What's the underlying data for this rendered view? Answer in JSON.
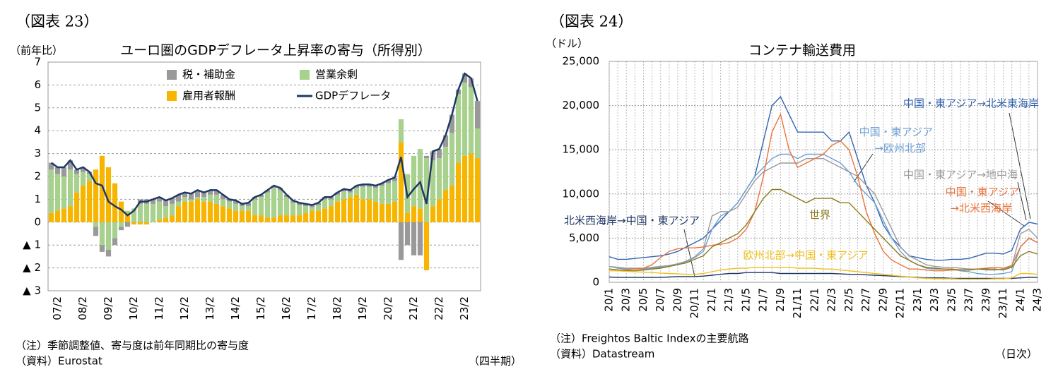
{
  "chart_data": [
    {
      "type": "bar",
      "stacked": true,
      "figure_label": "（図表 23）",
      "title": "ユーロ圏のGDPデフレータ上昇率の寄与（所得別）",
      "ylabel": "（前年比）",
      "xlabel": "（四半期）",
      "notes": [
        "（注）季節調整値、寄与度は前年同期比の寄与度",
        "（資料）Eurostat"
      ],
      "categories": [
        null,
        "07/2",
        null,
        null,
        null,
        "08/2",
        null,
        null,
        null,
        "09/2",
        null,
        null,
        null,
        "10/2",
        null,
        null,
        null,
        "11/2",
        null,
        null,
        null,
        "12/2",
        null,
        null,
        null,
        "13/2",
        null,
        null,
        null,
        "14/2",
        null,
        null,
        null,
        "15/2",
        null,
        null,
        null,
        "16/2",
        null,
        null,
        null,
        "17/2",
        null,
        null,
        null,
        "18/2",
        null,
        null,
        null,
        "19/2",
        null,
        null,
        null,
        "20/2",
        null,
        null,
        null,
        "21/2",
        null,
        null,
        null,
        "22/2",
        null,
        null,
        null,
        "23/2",
        null,
        null
      ],
      "ylim": [
        -3,
        7
      ],
      "yticks": [
        7,
        6,
        5,
        4,
        3,
        2,
        1,
        0,
        {
          "value": -1,
          "label": "▲ 1"
        },
        {
          "value": -2,
          "label": "▲ 2"
        },
        {
          "value": -3,
          "label": "▲ 3"
        }
      ],
      "grid": true,
      "series": [
        {
          "name": "雇用者報酬",
          "color": "#f7b500",
          "values": [
            0.4,
            0.5,
            0.6,
            0.7,
            1.3,
            1.6,
            1.8,
            2.3,
            2.9,
            2.4,
            1.7,
            0.9,
            0.4,
            -0.1,
            -0.1,
            -0.1,
            0,
            0.1,
            0.2,
            0.3,
            0.7,
            0.9,
            0.9,
            1.0,
            0.9,
            0.9,
            0.8,
            0.7,
            0.6,
            0.5,
            0.5,
            0.5,
            0.3,
            0.3,
            0.2,
            0.2,
            0.3,
            0.3,
            0.3,
            0.3,
            0.4,
            0.5,
            0.5,
            0.6,
            0.7,
            0.9,
            1.0,
            1.1,
            1.2,
            1.0,
            1.0,
            0.9,
            0.8,
            0.8,
            0.9,
            3.5,
            0.4,
            0.7,
            0.6,
            -2.1,
            0.7,
            1.0,
            1.4,
            1.6,
            2.6,
            2.9,
            3.0,
            2.8
          ]
        },
        {
          "name": "営業余剰",
          "color": "#a9d18e",
          "values": [
            1.9,
            1.6,
            1.4,
            1.6,
            0.8,
            0.6,
            0.3,
            -0.2,
            -1.0,
            -1.2,
            -0.7,
            -0.2,
            0.1,
            0.6,
            0.8,
            0.8,
            0.8,
            0.8,
            0.5,
            0.5,
            0.2,
            0.2,
            0.1,
            0.1,
            0.2,
            0.3,
            0.4,
            0.3,
            0.3,
            0.3,
            0.2,
            0.2,
            0.7,
            0.8,
            1.1,
            1.3,
            1.1,
            0.8,
            0.55,
            0.45,
            0.3,
            0.15,
            0.25,
            0.4,
            0.3,
            0.3,
            0.35,
            0.2,
            0.3,
            0.55,
            0.55,
            0.6,
            0.8,
            0.9,
            0.9,
            1.0,
            1.7,
            2.2,
            2.6,
            2.8,
            2.0,
            1.8,
            1.9,
            2.3,
            3.0,
            3.2,
            2.9,
            1.3
          ]
        },
        {
          "name": "税・補助金",
          "color": "#999999",
          "values": [
            0.3,
            0.3,
            0.4,
            0.4,
            0.2,
            0.2,
            0.1,
            -0.4,
            -0.3,
            -0.3,
            -0.3,
            -0.15,
            -0.2,
            0,
            0.2,
            0.2,
            0.2,
            0.2,
            0.25,
            0.25,
            0.3,
            0.2,
            0.25,
            0.3,
            0.2,
            0.2,
            0.2,
            0.2,
            0.1,
            0.15,
            0.1,
            0.15,
            0.1,
            0.1,
            0.1,
            0.1,
            0.1,
            0.1,
            0.1,
            0.1,
            0.1,
            0.1,
            0.1,
            0.1,
            0.1,
            0.1,
            0.1,
            0.1,
            0.1,
            0.1,
            0.1,
            0.1,
            0.1,
            0.15,
            0.15,
            -1.65,
            -1.0,
            -1.45,
            -1.45,
            0.1,
            0.4,
            0.4,
            0.5,
            0.8,
            0.2,
            0.4,
            0.4,
            1.2
          ]
        },
        {
          "name": "GDPデフレータ",
          "type": "line",
          "color": "#1f3864",
          "values": [
            2.6,
            2.4,
            2.4,
            2.7,
            2.3,
            2.4,
            2.2,
            1.7,
            1.6,
            0.9,
            0.7,
            0.55,
            0.3,
            0.5,
            0.9,
            0.9,
            1.0,
            1.1,
            0.95,
            1.05,
            1.2,
            1.3,
            1.25,
            1.4,
            1.3,
            1.4,
            1.4,
            1.2,
            1.0,
            0.95,
            0.8,
            0.85,
            1.1,
            1.2,
            1.4,
            1.6,
            1.5,
            1.2,
            0.95,
            0.85,
            0.8,
            0.75,
            0.85,
            1.1,
            1.1,
            1.3,
            1.45,
            1.4,
            1.6,
            1.65,
            1.65,
            1.6,
            1.7,
            1.85,
            1.95,
            2.85,
            1.1,
            1.45,
            1.75,
            0.8,
            3.1,
            3.2,
            3.8,
            4.7,
            5.8,
            6.5,
            6.3,
            5.3
          ]
        }
      ]
    },
    {
      "type": "line",
      "figure_label": "（図表 24）",
      "title": "コンテナ輸送費用",
      "ylabel": "（ドル）",
      "xlabel": "（日次）",
      "notes": [
        "（注）Freightos Baltic Indexの主要航路",
        "（資料）Datastream"
      ],
      "categories": [
        "20/1",
        null,
        "20/3",
        null,
        "20/5",
        null,
        "20/7",
        null,
        "20/9",
        null,
        "20/11",
        null,
        "21/1",
        null,
        "21/3",
        null,
        "21/5",
        null,
        "21/7",
        null,
        "21/9",
        null,
        "21/11",
        null,
        "22/1",
        null,
        "22/3",
        null,
        "22/5",
        null,
        "22/7",
        null,
        "22/9",
        null,
        "22/11",
        null,
        "23/1",
        null,
        "23/3",
        null,
        "23/5",
        null,
        "23/7",
        null,
        "23/9",
        null,
        "23/11",
        null,
        "24/1",
        null,
        "24/3"
      ],
      "ylim": [
        0,
        25000
      ],
      "yticks": [
        0,
        {
          "value": 5000,
          "label": "5,000"
        },
        {
          "value": 10000,
          "label": "10,000"
        },
        {
          "value": 15000,
          "label": "15,000"
        },
        {
          "value": 20000,
          "label": "20,000"
        },
        {
          "value": 25000,
          "label": "25,000"
        }
      ],
      "grid": true,
      "series": [
        {
          "name": "中国・東アジア→北米東海岸",
          "color": "#3465b0",
          "values": [
            2900,
            2600,
            2600,
            2700,
            2800,
            2900,
            3000,
            3200,
            3500,
            4000,
            4500,
            5000,
            6000,
            7000,
            8000,
            9000,
            10500,
            12000,
            16000,
            20000,
            21000,
            19000,
            17000,
            17000,
            17000,
            17000,
            16000,
            16000,
            17000,
            14000,
            11000,
            9000,
            6500,
            5000,
            4000,
            3000,
            2800,
            2600,
            2500,
            2500,
            2600,
            2600,
            2700,
            3000,
            3300,
            3300,
            3200,
            3600,
            6000,
            6800,
            6600
          ]
        },
        {
          "name": "中国・東アジア→欧州北部",
          "color": "#6fa0d4",
          "values": [
            1800,
            1600,
            1500,
            1500,
            1500,
            1600,
            1700,
            1800,
            2000,
            2300,
            2800,
            3500,
            6000,
            7500,
            8000,
            9000,
            10500,
            12000,
            13000,
            14000,
            14500,
            14500,
            14000,
            14500,
            14500,
            14500,
            14000,
            13500,
            12500,
            11000,
            10000,
            9000,
            7000,
            5000,
            3500,
            2500,
            2000,
            1600,
            1500,
            1500,
            1500,
            1300,
            1200,
            1000,
            900,
            900,
            1000,
            1200,
            4000,
            5000,
            4500
          ]
        },
        {
          "name": "中国・東アジア→地中海",
          "color": "#9a9a9a",
          "values": [
            1800,
            1700,
            1600,
            1600,
            1600,
            1700,
            1800,
            1900,
            2100,
            2400,
            2900,
            3800,
            7500,
            8000,
            8000,
            8500,
            10000,
            11500,
            12500,
            13000,
            13500,
            13500,
            13500,
            14000,
            14000,
            14000,
            13500,
            13000,
            12500,
            12000,
            11000,
            10000,
            8000,
            6000,
            4000,
            3000,
            2500,
            2000,
            1800,
            1700,
            1700,
            1600,
            1500,
            1500,
            1400,
            1400,
            1500,
            1800,
            5500,
            6000,
            5000
          ]
        },
        {
          "name": "中国・東アジア→北米西海岸",
          "color": "#e8743b",
          "values": [
            1500,
            1400,
            1400,
            1500,
            1600,
            2000,
            2800,
            3500,
            3800,
            3900,
            3900,
            4000,
            4200,
            4300,
            4500,
            5000,
            6000,
            8000,
            12000,
            17000,
            19000,
            15000,
            13000,
            13500,
            14000,
            14500,
            15500,
            16000,
            15000,
            12000,
            8000,
            5500,
            3500,
            2500,
            2000,
            1500,
            1500,
            1400,
            1300,
            1300,
            1400,
            1400,
            1400,
            1500,
            1600,
            1700,
            1600,
            1900,
            4000,
            5000,
            4500
          ]
        },
        {
          "name": "世界",
          "color": "#8a7a1a",
          "values": [
            1500,
            1400,
            1300,
            1300,
            1400,
            1500,
            1600,
            1800,
            2000,
            2200,
            2600,
            3000,
            4000,
            4500,
            5000,
            5500,
            6500,
            8000,
            9500,
            10500,
            10500,
            10000,
            9500,
            9000,
            9500,
            9500,
            9500,
            9000,
            9000,
            8000,
            7000,
            6000,
            5000,
            4000,
            3000,
            2500,
            2000,
            1700,
            1600,
            1500,
            1500,
            1400,
            1400,
            1500,
            1500,
            1500,
            1400,
            1700,
            3000,
            3500,
            3200
          ]
        },
        {
          "name": "北米西海岸→中国・東アジア",
          "color": "#1f3864",
          "values": [
            600,
            550,
            550,
            550,
            550,
            550,
            550,
            600,
            650,
            650,
            650,
            700,
            800,
            900,
            1000,
            1000,
            1100,
            1100,
            1100,
            1100,
            1000,
            1000,
            1000,
            1000,
            1000,
            1000,
            1000,
            950,
            900,
            900,
            850,
            800,
            750,
            700,
            650,
            600,
            550,
            500,
            500,
            500,
            450,
            450,
            450,
            450,
            450,
            450,
            450,
            450,
            500,
            550,
            550
          ]
        },
        {
          "name": "欧州北部→中国・東アジア",
          "color": "#f0c020",
          "values": [
            1300,
            1300,
            1250,
            1200,
            1150,
            1100,
            1050,
            1000,
            950,
            900,
            900,
            1000,
            1200,
            1400,
            1500,
            1600,
            1600,
            1700,
            1700,
            1700,
            1700,
            1700,
            1600,
            1600,
            1600,
            1500,
            1500,
            1400,
            1300,
            1200,
            1100,
            1000,
            900,
            800,
            700,
            600,
            500,
            450,
            400,
            400,
            400,
            350,
            350,
            350,
            350,
            400,
            400,
            500,
            1000,
            1000,
            900
          ]
        }
      ]
    }
  ]
}
